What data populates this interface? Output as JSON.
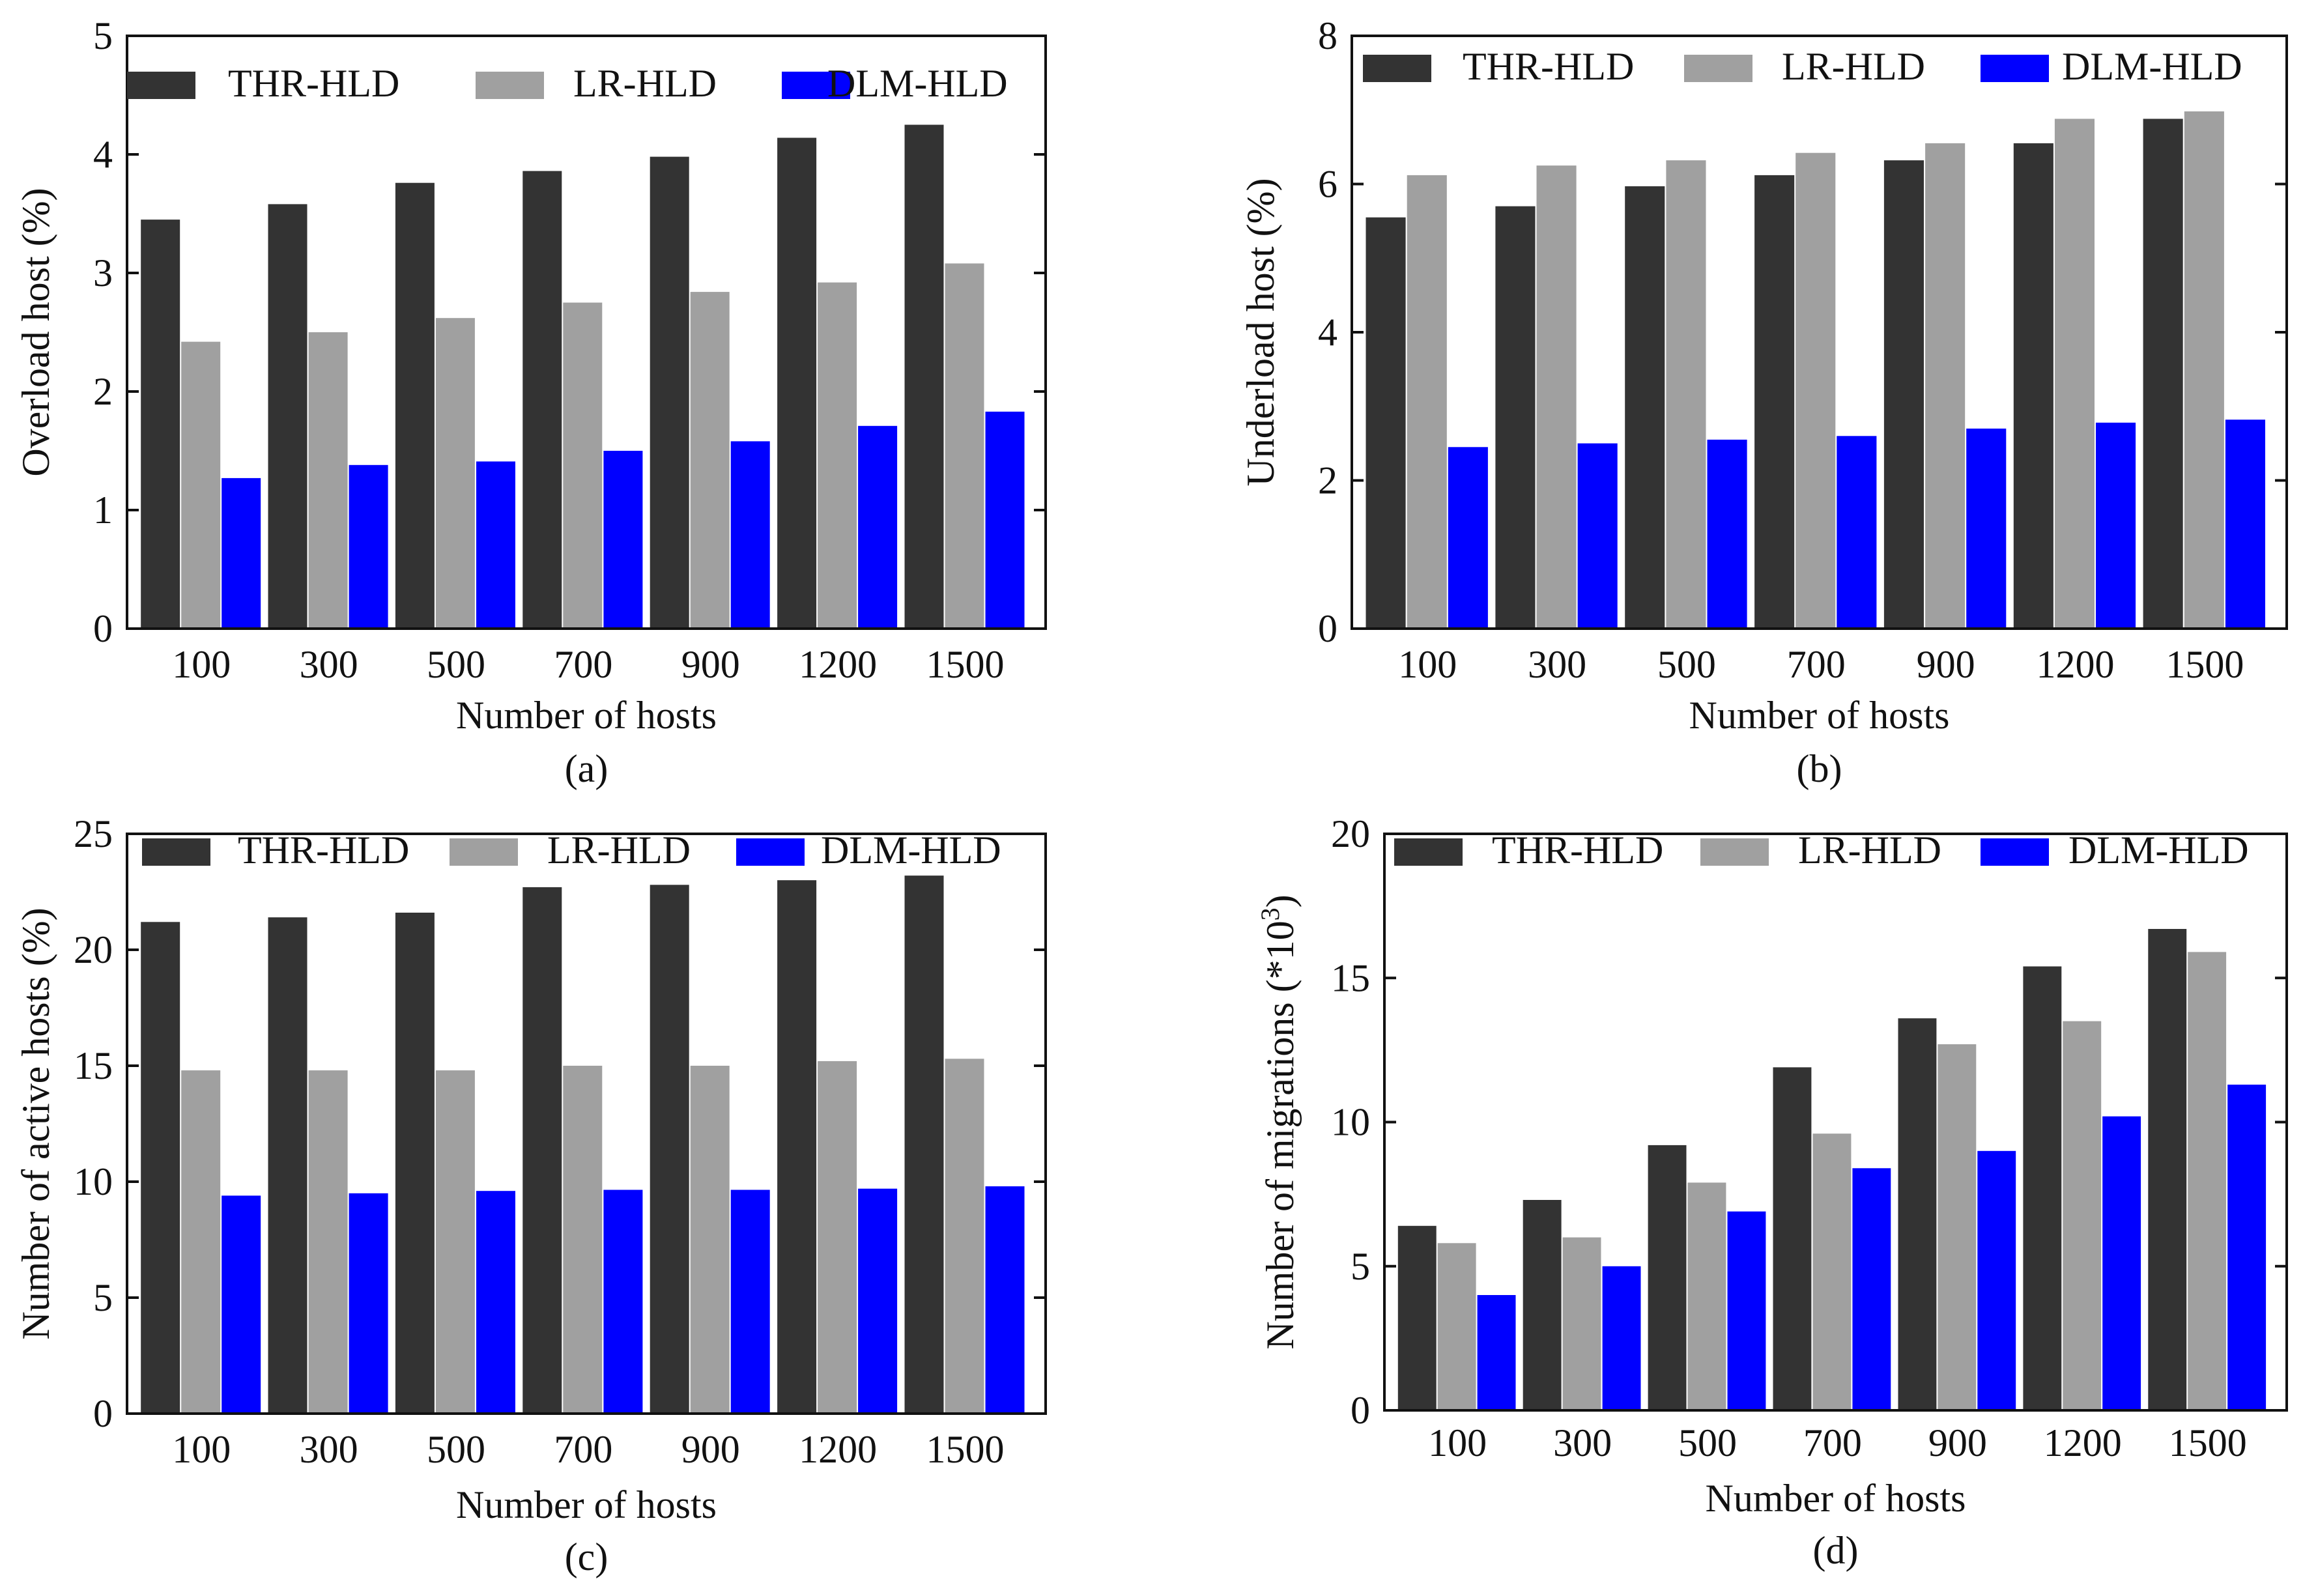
{
  "chart_data": [
    {
      "type": "bar",
      "caption": "(a)",
      "xlabel": "Number of hosts",
      "ylabel": "Overload host (%)",
      "categories": [
        "100",
        "300",
        "500",
        "700",
        "900",
        "1200",
        "1500"
      ],
      "ylim": [
        0,
        5
      ],
      "yticks": [
        "0",
        "1",
        "2",
        "3",
        "4",
        "5"
      ],
      "grid": false,
      "legend": "top",
      "series": [
        {
          "name": "THR-HLD",
          "color": "#333333",
          "values": [
            3.45,
            3.58,
            3.76,
            3.86,
            3.98,
            4.14,
            4.25
          ]
        },
        {
          "name": "LR-HLD",
          "color": "#a0a0a0",
          "values": [
            2.42,
            2.5,
            2.62,
            2.75,
            2.84,
            2.92,
            3.08
          ]
        },
        {
          "name": "DLM-HLD",
          "color": "#0000ff",
          "values": [
            1.27,
            1.38,
            1.41,
            1.5,
            1.58,
            1.71,
            1.83
          ]
        }
      ]
    },
    {
      "type": "bar",
      "caption": "(b)",
      "xlabel": "Number of hosts",
      "ylabel": "Underload host (%)",
      "categories": [
        "100",
        "300",
        "500",
        "700",
        "900",
        "1200",
        "1500"
      ],
      "ylim": [
        0,
        8
      ],
      "yticks": [
        "0",
        "2",
        "4",
        "6",
        "8"
      ],
      "grid": false,
      "legend": "top",
      "series": [
        {
          "name": "THR-HLD",
          "color": "#333333",
          "values": [
            5.55,
            5.7,
            5.97,
            6.12,
            6.32,
            6.55,
            6.88
          ]
        },
        {
          "name": "LR-HLD",
          "color": "#a0a0a0",
          "values": [
            6.12,
            6.25,
            6.32,
            6.42,
            6.55,
            6.88,
            6.98
          ]
        },
        {
          "name": "DLM-HLD",
          "color": "#0000ff",
          "values": [
            2.45,
            2.5,
            2.55,
            2.6,
            2.7,
            2.78,
            2.82
          ]
        }
      ]
    },
    {
      "type": "bar",
      "caption": "(c)",
      "xlabel": "Number of hosts",
      "ylabel": "Number of active hosts (%)",
      "categories": [
        "100",
        "300",
        "500",
        "700",
        "900",
        "1200",
        "1500"
      ],
      "ylim": [
        0,
        25
      ],
      "yticks": [
        "0",
        "5",
        "10",
        "15",
        "20",
        "25"
      ],
      "grid": false,
      "legend": "top",
      "series": [
        {
          "name": "THR-HLD",
          "color": "#333333",
          "values": [
            21.2,
            21.4,
            21.6,
            22.7,
            22.8,
            23.0,
            23.2
          ]
        },
        {
          "name": "LR-HLD",
          "color": "#a0a0a0",
          "values": [
            14.8,
            14.8,
            14.8,
            15.0,
            15.0,
            15.2,
            15.3
          ]
        },
        {
          "name": "DLM-HLD",
          "color": "#0000ff",
          "values": [
            9.4,
            9.5,
            9.6,
            9.65,
            9.65,
            9.7,
            9.8
          ]
        }
      ]
    },
    {
      "type": "bar",
      "caption": "(d)",
      "xlabel": "Number of hosts",
      "ylabel": "Number of migrations (*10",
      "ylabel_sup": "3",
      "ylabel_end": ")",
      "categories": [
        "100",
        "300",
        "500",
        "700",
        "900",
        "1200",
        "1500"
      ],
      "ylim": [
        0,
        20
      ],
      "yticks": [
        "0",
        "5",
        "10",
        "15",
        "20"
      ],
      "grid": false,
      "legend": "top",
      "series": [
        {
          "name": "THR-HLD",
          "color": "#333333",
          "values": [
            6.4,
            7.3,
            9.2,
            11.9,
            13.6,
            15.4,
            16.7
          ]
        },
        {
          "name": "LR-HLD",
          "color": "#a0a0a0",
          "values": [
            5.8,
            6.0,
            7.9,
            9.6,
            12.7,
            13.5,
            15.9
          ]
        },
        {
          "name": "DLM-HLD",
          "color": "#0000ff",
          "values": [
            4.0,
            5.0,
            6.9,
            8.4,
            9.0,
            10.2,
            11.3
          ]
        }
      ]
    }
  ]
}
